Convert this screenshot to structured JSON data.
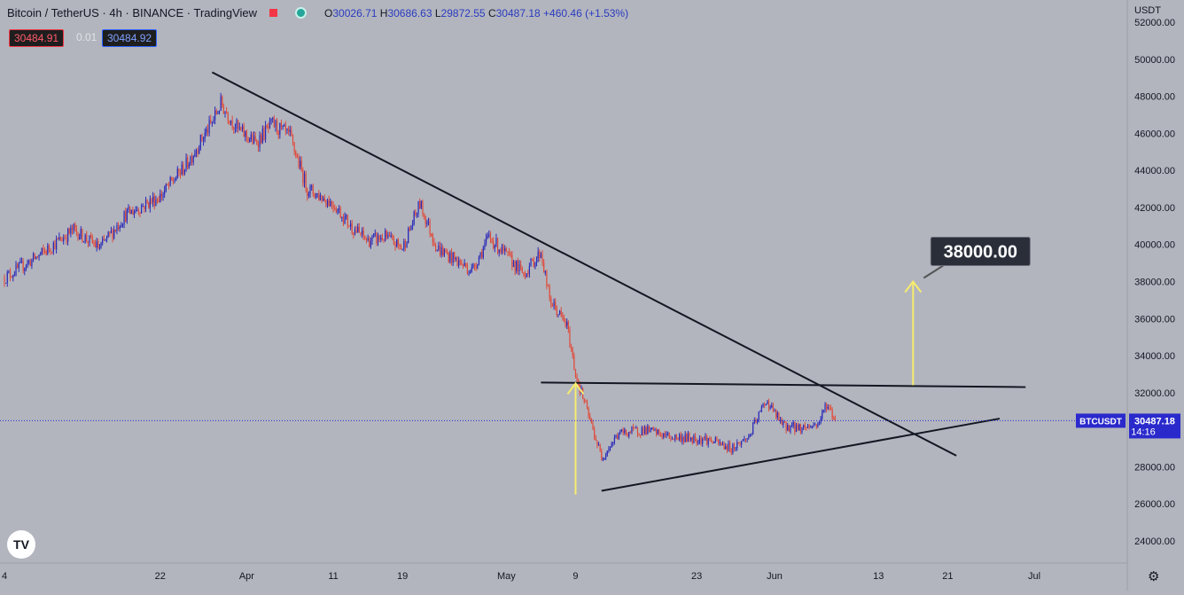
{
  "header": {
    "title": "Bitcoin / TetherUS · 4h · BINANCE · TradingView",
    "ohlc": {
      "o_label": "O",
      "o": "30026.71",
      "h_label": "H",
      "h": "30686.63",
      "l_label": "L",
      "l": "29872.55",
      "c_label": "C",
      "c": "30487.18",
      "change": "+460.46 (+1.53%)"
    }
  },
  "quote": {
    "sell": "30484.91",
    "spread": "0.01",
    "buy": "30484.92"
  },
  "currency": "USDT",
  "symbol_tag": "BTCUSDT",
  "last_price": "30487.18",
  "countdown": "14:16",
  "target_label": "38000.00",
  "colors": {
    "background": "#b2b5be",
    "up": "#2a2ab8",
    "down": "#e04a3a",
    "line": "#131722",
    "arrow": "#f7ec6e",
    "price_line": "#2a2acc"
  },
  "chart_data": {
    "type": "candlestick",
    "ylim": [
      22800,
      53200
    ],
    "y_ticks": [
      "24000.00",
      "26000.00",
      "28000.00",
      "30000.00",
      "32000.00",
      "34000.00",
      "36000.00",
      "38000.00",
      "40000.00",
      "42000.00",
      "44000.00",
      "46000.00",
      "48000.00",
      "50000.00",
      "52000.00"
    ],
    "x_ticks": [
      "4",
      "22",
      "Apr",
      "11",
      "19",
      "May",
      "9",
      "23",
      "Jun",
      "13",
      "21",
      "Jul"
    ],
    "close_path": [
      {
        "x": "2022-03-04",
        "y": 38200
      },
      {
        "x": "2022-03-08",
        "y": 39400
      },
      {
        "x": "2022-03-12",
        "y": 40800
      },
      {
        "x": "2022-03-15",
        "y": 39800
      },
      {
        "x": "2022-03-18",
        "y": 41600
      },
      {
        "x": "2022-03-22",
        "y": 42600
      },
      {
        "x": "2022-03-25",
        "y": 44300
      },
      {
        "x": "2022-03-28",
        "y": 46600
      },
      {
        "x": "2022-03-29",
        "y": 47600
      },
      {
        "x": "2022-03-31",
        "y": 46200
      },
      {
        "x": "2022-04-02",
        "y": 45500
      },
      {
        "x": "2022-04-04",
        "y": 46500
      },
      {
        "x": "2022-04-06",
        "y": 45800
      },
      {
        "x": "2022-04-08",
        "y": 43000
      },
      {
        "x": "2022-04-11",
        "y": 42200
      },
      {
        "x": "2022-04-13",
        "y": 41000
      },
      {
        "x": "2022-04-15",
        "y": 40200
      },
      {
        "x": "2022-04-17",
        "y": 40400
      },
      {
        "x": "2022-04-19",
        "y": 39800
      },
      {
        "x": "2022-04-21",
        "y": 42200
      },
      {
        "x": "2022-04-23",
        "y": 39800
      },
      {
        "x": "2022-04-25",
        "y": 39200
      },
      {
        "x": "2022-04-27",
        "y": 38600
      },
      {
        "x": "2022-04-29",
        "y": 40400
      },
      {
        "x": "2022-05-01",
        "y": 39400
      },
      {
        "x": "2022-05-03",
        "y": 38400
      },
      {
        "x": "2022-05-05",
        "y": 39600
      },
      {
        "x": "2022-05-06",
        "y": 37000
      },
      {
        "x": "2022-05-08",
        "y": 35600
      },
      {
        "x": "2022-05-09",
        "y": 33000
      },
      {
        "x": "2022-05-11",
        "y": 30000
      },
      {
        "x": "2022-05-12",
        "y": 28500
      },
      {
        "x": "2022-05-14",
        "y": 29800
      },
      {
        "x": "2022-05-17",
        "y": 30000
      },
      {
        "x": "2022-05-20",
        "y": 29600
      },
      {
        "x": "2022-05-24",
        "y": 29500
      },
      {
        "x": "2022-05-27",
        "y": 29000
      },
      {
        "x": "2022-05-29",
        "y": 29600
      },
      {
        "x": "2022-05-31",
        "y": 31600
      },
      {
        "x": "2022-06-02",
        "y": 30200
      },
      {
        "x": "2022-06-04",
        "y": 30100
      },
      {
        "x": "2022-06-06",
        "y": 30300
      },
      {
        "x": "2022-06-07",
        "y": 31400
      },
      {
        "x": "2022-06-08",
        "y": 30487
      }
    ],
    "annotations": {
      "descending_trendline": [
        {
          "x": "2022-03-28",
          "y": 49300
        },
        {
          "x": "2022-06-22",
          "y": 28600
        }
      ],
      "horizontal_resistance": [
        {
          "x": "2022-05-05",
          "y": 32550
        },
        {
          "x": "2022-06-30",
          "y": 32300
        }
      ],
      "ascending_support": [
        {
          "x": "2022-05-12",
          "y": 26700
        },
        {
          "x": "2022-06-27",
          "y": 30600
        }
      ],
      "arrow_up_1": [
        {
          "x": "2022-05-09",
          "y": 26500
        },
        {
          "x": "2022-05-09",
          "y": 32500
        }
      ],
      "arrow_up_2": [
        {
          "x": "2022-06-17",
          "y": 32400
        },
        {
          "x": "2022-06-17",
          "y": 38000
        }
      ],
      "target": {
        "x": "2022-06-17",
        "y": 38000
      }
    }
  }
}
